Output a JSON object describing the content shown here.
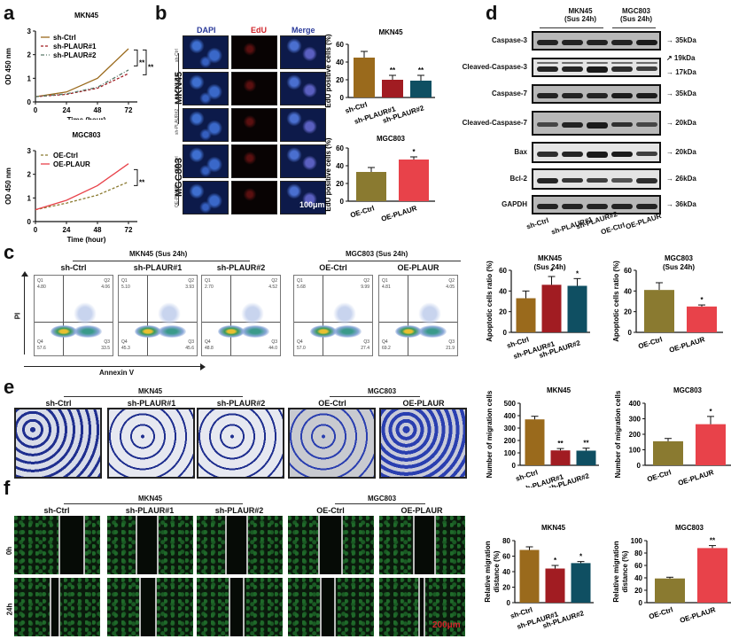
{
  "panels": {
    "a": {
      "letter": "a"
    },
    "b": {
      "letter": "b",
      "channels": [
        "DAPI",
        "EdU",
        "Merge"
      ],
      "row_labels": [
        "sh-Ctrl",
        "sh-PLAUR#1",
        "sh-PLAUR#2",
        "OE-Ctrl",
        "OE-PLAUR"
      ],
      "group_labels": [
        "MKN45",
        "MGC803"
      ],
      "scale_bar": "100μm"
    },
    "c": {
      "letter": "c",
      "group_mkn45": "MKN45 (Sus 24h)",
      "group_mgc803": "MGC803 (Sus 24h)",
      "y_axis": "PI",
      "x_axis": "Annexin V",
      "plots": [
        {
          "label": "sh-Ctrl",
          "q1": "4.80",
          "q2": "4.06",
          "q3": "33.5",
          "q4": "57.6"
        },
        {
          "label": "sh-PLAUR#1",
          "q1": "5.10",
          "q2": "3.93",
          "q3": "45.6",
          "q4": "45.3"
        },
        {
          "label": "sh-PLAUR#2",
          "q1": "2.70",
          "q2": "4.52",
          "q3": "44.0",
          "q4": "48.8"
        },
        {
          "label": "OE-Ctrl",
          "q1": "5.68",
          "q2": "9.99",
          "q3": "27.4",
          "q4": "57.0"
        },
        {
          "label": "OE-PLAUR",
          "q1": "4.81",
          "q2": "4.05",
          "q3": "21.9",
          "q4": "69.2"
        }
      ],
      "quad_names": {
        "q1": "Q1",
        "q2": "Q2",
        "q3": "Q3",
        "q4": "Q4"
      }
    },
    "d": {
      "letter": "d",
      "group_mkn45": "MKN45\n(Sus 24h)",
      "group_mkn45_l1": "MKN45",
      "group_mkn45_l2": "(Sus 24h)",
      "group_mgc803_l1": "MGC803",
      "group_mgc803_l2": "(Sus 24h)",
      "blots": [
        {
          "name": "Caspase-3",
          "size": "35kDa"
        },
        {
          "name": "Cleaved-Caspase-3",
          "size": "19kDa",
          "size2": "17kDa"
        },
        {
          "name": "Caspase-7",
          "size": "35kDa"
        },
        {
          "name": "Cleaved-Caspase-7",
          "size": "20kDa"
        },
        {
          "name": "Bax",
          "size": "20kDa"
        },
        {
          "name": "Bcl-2",
          "size": "26kDa"
        },
        {
          "name": "GAPDH",
          "size": "36kDa"
        }
      ],
      "lanes": [
        "sh-Ctrl",
        "sh-PLAUR#1",
        "sh-PLAUR#2",
        "OE-Ctrl",
        "OE-PLAUR"
      ]
    },
    "e": {
      "letter": "e",
      "group_mkn45": "MKN45",
      "group_mgc803": "MGC803",
      "labels": [
        "sh-Ctrl",
        "sh-PLAUR#1",
        "sh-PLAUR#2",
        "OE-Ctrl",
        "OE-PLAUR"
      ]
    },
    "f": {
      "letter": "f",
      "group_mkn45": "MKN45",
      "group_mgc803": "MGC803",
      "labels": [
        "sh-Ctrl",
        "sh-PLAUR#1",
        "sh-PLAUR#2",
        "OE-Ctrl",
        "OE-PLAUR"
      ],
      "rows": [
        "0h",
        "24h"
      ],
      "scale_bar": "200μm"
    }
  },
  "colors": {
    "ctrl_sh": "#9a6a1c",
    "plaur1": "#a11c22",
    "plaur2": "#0f4f62",
    "ctrl_oe": "#8a7a30",
    "oe_plaur": "#e8424a"
  },
  "chart_data": [
    {
      "id": "a-mkn45",
      "type": "line",
      "title": "MKN45",
      "xlabel": "Time (hour)",
      "ylabel": "OD 450 nm",
      "x": [
        0,
        24,
        48,
        72
      ],
      "ylim": [
        0,
        3
      ],
      "yticks": [
        0,
        1,
        2,
        3
      ],
      "series": [
        {
          "name": "sh-Ctrl",
          "values": [
            0.22,
            0.42,
            1.0,
            2.25
          ],
          "style": "solid"
        },
        {
          "name": "sh-PLAUR#1",
          "values": [
            0.22,
            0.32,
            0.58,
            1.2
          ],
          "style": "dashed"
        },
        {
          "name": "sh-PLAUR#2",
          "values": [
            0.22,
            0.34,
            0.62,
            1.35
          ],
          "style": "dash-dot"
        }
      ],
      "annotations": [
        "**",
        "**"
      ]
    },
    {
      "id": "a-mgc803",
      "type": "line",
      "title": "MGC803",
      "xlabel": "Time (hour)",
      "ylabel": "OD 450 nm",
      "x": [
        0,
        24,
        48,
        72
      ],
      "ylim": [
        0,
        3
      ],
      "yticks": [
        0,
        1,
        2,
        3
      ],
      "series": [
        {
          "name": "OE-Ctrl",
          "values": [
            0.5,
            0.78,
            1.12,
            1.68
          ],
          "style": "dashed"
        },
        {
          "name": "OE-PLAUR",
          "values": [
            0.5,
            0.9,
            1.52,
            2.45
          ],
          "style": "solid"
        }
      ],
      "annotations": [
        "**"
      ]
    },
    {
      "id": "b-mkn45",
      "type": "bar",
      "title": "MKN45",
      "ylabel": "EdU positive cells (%)",
      "categories": [
        "sh-Ctrl",
        "sh-PLAUR#1",
        "sh-PLAUR#2"
      ],
      "values": [
        45,
        20,
        19
      ],
      "errors": [
        7,
        5,
        6
      ],
      "significance": [
        "",
        "**",
        "**"
      ],
      "ylim": [
        0,
        60
      ],
      "yticks": [
        0,
        20,
        40,
        60
      ]
    },
    {
      "id": "b-mgc803",
      "type": "bar",
      "title": "MGC803",
      "ylabel": "EdU positive cells (%)",
      "categories": [
        "OE-Ctrl",
        "OE-PLAUR"
      ],
      "values": [
        33,
        47
      ],
      "errors": [
        5,
        3
      ],
      "significance": [
        "",
        "*"
      ],
      "ylim": [
        0,
        60
      ],
      "yticks": [
        0,
        20,
        40,
        60
      ]
    },
    {
      "id": "c-mkn45",
      "type": "bar",
      "title": "MKN45\n(Sus 24h)",
      "ylabel": "Apoptotic cells ratio (%)",
      "categories": [
        "sh-Ctrl",
        "sh-PLAUR#1",
        "sh-PLAUR#2"
      ],
      "values": [
        33,
        46,
        45
      ],
      "errors": [
        7,
        8,
        7
      ],
      "significance": [
        "",
        "*",
        "*"
      ],
      "ylim": [
        0,
        60
      ],
      "yticks": [
        0,
        20,
        40,
        60
      ]
    },
    {
      "id": "c-mgc803",
      "type": "bar",
      "title": "MGC803\n(Sus 24h)",
      "ylabel": "Apoptotic cells ratio (%)",
      "categories": [
        "OE-Ctrl",
        "OE-PLAUR"
      ],
      "values": [
        41,
        25
      ],
      "errors": [
        7,
        1.5
      ],
      "significance": [
        "",
        "*"
      ],
      "ylim": [
        0,
        60
      ],
      "yticks": [
        0,
        20,
        40,
        60
      ]
    },
    {
      "id": "e-mkn45",
      "type": "bar",
      "title": "MKN45",
      "ylabel": "Number of migration cells",
      "categories": [
        "sh-Ctrl",
        "sh-PLAUR#1",
        "sh-PLAUR#2"
      ],
      "values": [
        370,
        120,
        118
      ],
      "errors": [
        25,
        15,
        20
      ],
      "significance": [
        "",
        "**",
        "**"
      ],
      "ylim": [
        0,
        500
      ],
      "yticks": [
        0,
        100,
        200,
        300,
        400,
        500
      ]
    },
    {
      "id": "e-mgc803",
      "type": "bar",
      "title": "MGC803",
      "ylabel": "Number of migration cells",
      "categories": [
        "OE-Ctrl",
        "OE-PLAUR"
      ],
      "values": [
        155,
        265
      ],
      "errors": [
        18,
        50
      ],
      "significance": [
        "",
        "*"
      ],
      "ylim": [
        0,
        400
      ],
      "yticks": [
        0,
        100,
        200,
        300,
        400
      ]
    },
    {
      "id": "f-mkn45",
      "type": "bar",
      "title": "MKN45",
      "ylabel": "Relative migration distance (%)",
      "categories": [
        "sh-Ctrl",
        "sh-PLAUR#1",
        "sh-PLAUR#2"
      ],
      "values": [
        68,
        44,
        51
      ],
      "errors": [
        4,
        4,
        2
      ],
      "significance": [
        "",
        "*",
        "*"
      ],
      "ylim": [
        0,
        80
      ],
      "yticks": [
        0,
        20,
        40,
        60,
        80
      ]
    },
    {
      "id": "f-mgc803",
      "type": "bar",
      "title": "MGC803",
      "ylabel": "Relative migration distance (%)",
      "categories": [
        "OE-Ctrl",
        "OE-PLAUR"
      ],
      "values": [
        39,
        88
      ],
      "errors": [
        2,
        4
      ],
      "significance": [
        "",
        "**"
      ],
      "ylim": [
        0,
        100
      ],
      "yticks": [
        0,
        20,
        40,
        60,
        80,
        100
      ]
    }
  ]
}
